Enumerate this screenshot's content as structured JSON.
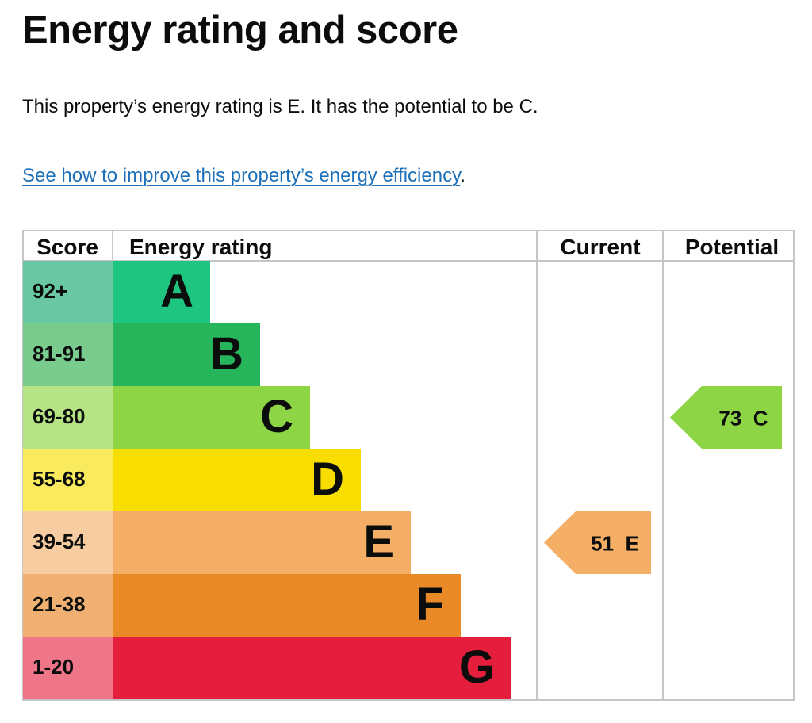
{
  "heading": "Energy rating and score",
  "summary": "This property’s energy rating is E. It has the potential to be C.",
  "improve_link": "See how to improve this property’s energy efficiency",
  "improve_suffix": ".",
  "table": {
    "headers": {
      "score": "Score",
      "rating": "Energy rating",
      "current": "Current",
      "potential": "Potential"
    },
    "bands": [
      {
        "score": "92+",
        "letter": "A",
        "color": "#1dc581",
        "score_bg": "#69c8a3"
      },
      {
        "score": "81-91",
        "letter": "B",
        "color": "#27b55c",
        "score_bg": "#79cc8e"
      },
      {
        "score": "69-80",
        "letter": "C",
        "color": "#8ed545",
        "score_bg": "#b6e485"
      },
      {
        "score": "55-68",
        "letter": "D",
        "color": "#f7dd00",
        "score_bg": "#faeb5e"
      },
      {
        "score": "39-54",
        "letter": "E",
        "color": "#f5ae65",
        "score_bg": "#f7cca0"
      },
      {
        "score": "21-38",
        "letter": "F",
        "color": "#ea8a26",
        "score_bg": "#f0b071"
      },
      {
        "score": "1-20",
        "letter": "G",
        "color": "#e41e3c",
        "score_bg": "#ee7688"
      }
    ],
    "current": {
      "score": 51,
      "letter": "E",
      "label": "51  E",
      "color": "#f5ae65"
    },
    "potential": {
      "score": 73,
      "letter": "C",
      "label": "73  C",
      "color": "#8ed545"
    }
  }
}
